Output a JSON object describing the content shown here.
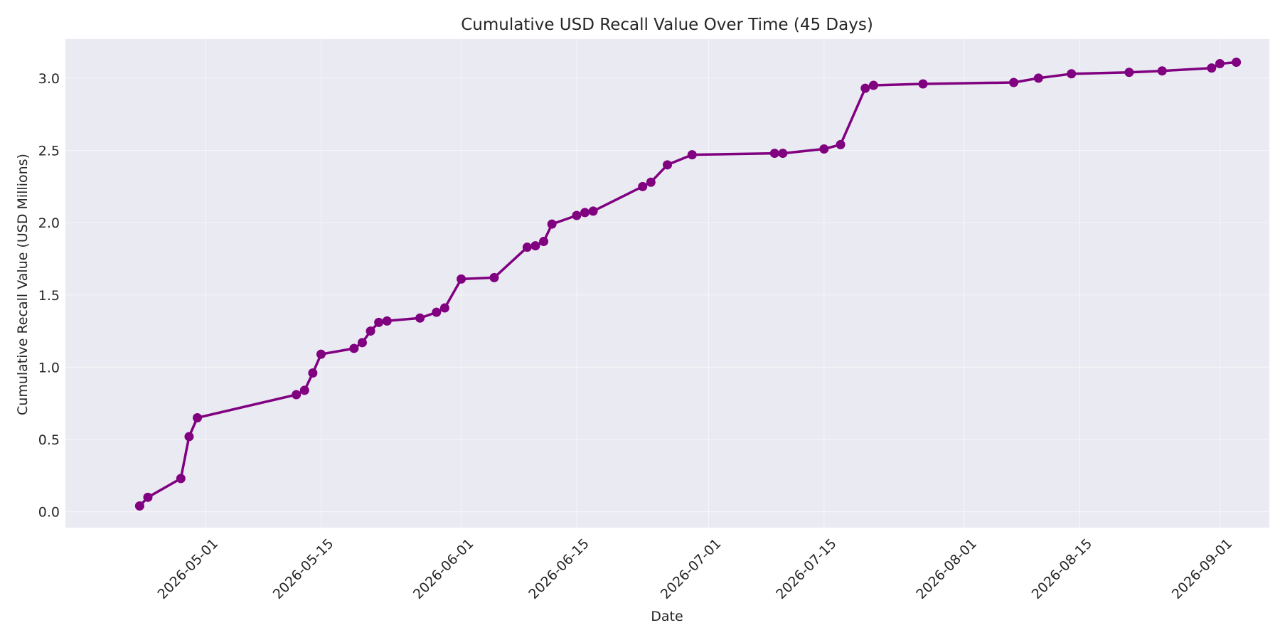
{
  "chart_data": {
    "type": "line",
    "title": "Cumulative USD Recall Value Over Time (45 Days)",
    "xlabel": "Date",
    "ylabel": "Cumulative Recall Value (USD Millions)",
    "xlim": [
      "2026-04-14",
      "2026-09-07"
    ],
    "ylim": [
      -0.11,
      3.27
    ],
    "x_ticks": [
      "2026-05-01",
      "2026-05-15",
      "2026-06-01",
      "2026-06-15",
      "2026-07-01",
      "2026-07-15",
      "2026-08-01",
      "2026-08-15",
      "2026-09-01"
    ],
    "y_ticks": [
      "0.0",
      "0.5",
      "1.0",
      "1.5",
      "2.0",
      "2.5",
      "3.0"
    ],
    "grid": true,
    "line_color": "#800080",
    "background_color": "#eaeaf2",
    "series": [
      {
        "x": [
          "2026-04-23",
          "2026-04-24",
          "2026-04-28",
          "2026-04-29",
          "2026-04-30",
          "2026-05-12",
          "2026-05-13",
          "2026-05-14",
          "2026-05-15",
          "2026-05-19",
          "2026-05-20",
          "2026-05-21",
          "2026-05-22",
          "2026-05-23",
          "2026-05-27",
          "2026-05-29",
          "2026-05-30",
          "2026-06-01",
          "2026-06-05",
          "2026-06-09",
          "2026-06-10",
          "2026-06-11",
          "2026-06-12",
          "2026-06-15",
          "2026-06-16",
          "2026-06-17",
          "2026-06-23",
          "2026-06-24",
          "2026-06-26",
          "2026-06-29",
          "2026-07-09",
          "2026-07-10",
          "2026-07-15",
          "2026-07-17",
          "2026-07-20",
          "2026-07-21",
          "2026-07-27",
          "2026-08-07",
          "2026-08-10",
          "2026-08-14",
          "2026-08-21",
          "2026-08-25",
          "2026-08-31",
          "2026-09-01",
          "2026-09-03"
        ],
        "values": [
          0.04,
          0.1,
          0.23,
          0.52,
          0.65,
          0.81,
          0.84,
          0.96,
          1.09,
          1.13,
          1.17,
          1.25,
          1.31,
          1.32,
          1.34,
          1.38,
          1.41,
          1.61,
          1.62,
          1.83,
          1.84,
          1.87,
          1.99,
          2.05,
          2.07,
          2.08,
          2.25,
          2.28,
          2.4,
          2.47,
          2.48,
          2.48,
          2.51,
          2.54,
          2.93,
          2.95,
          2.96,
          2.97,
          3.0,
          3.03,
          3.04,
          3.05,
          3.07,
          3.1,
          3.11
        ]
      }
    ]
  }
}
